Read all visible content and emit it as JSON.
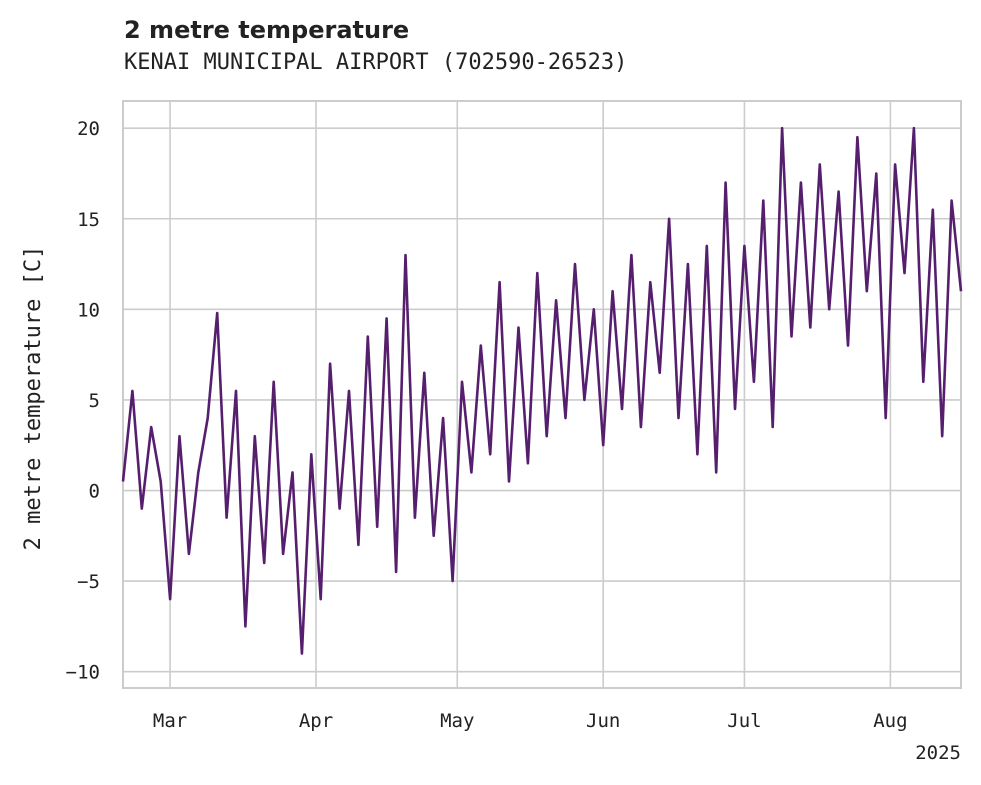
{
  "chart_data": {
    "type": "line",
    "title": "2 metre temperature",
    "subtitle": "KENAI MUNICIPAL AIRPORT (702590-26523)",
    "ylabel": "2 metre temperature [C]",
    "xlabel": "",
    "x_range": [
      "2025-02-19",
      "2025-08-16"
    ],
    "ylim": [
      -10.9,
      21.5
    ],
    "x_ticks": [
      {
        "date": "2025-03-01",
        "label": "Mar"
      },
      {
        "date": "2025-04-01",
        "label": "Apr"
      },
      {
        "date": "2025-05-01",
        "label": "May"
      },
      {
        "date": "2025-06-01",
        "label": "Jun"
      },
      {
        "date": "2025-07-01",
        "label": "Jul"
      },
      {
        "date": "2025-08-01",
        "label": "Aug"
      }
    ],
    "x_secondary_label": "2025",
    "y_ticks": [
      -10,
      -5,
      0,
      5,
      10,
      15,
      20
    ],
    "grid": true,
    "line_color": "#561f6e",
    "series": [
      {
        "x": [
          "2025-02-19",
          "2025-02-21",
          "2025-02-23",
          "2025-02-25",
          "2025-02-27",
          "2025-03-01",
          "2025-03-03",
          "2025-03-05",
          "2025-03-07",
          "2025-03-09",
          "2025-03-11",
          "2025-03-13",
          "2025-03-15",
          "2025-03-17",
          "2025-03-19",
          "2025-03-21",
          "2025-03-23",
          "2025-03-25",
          "2025-03-27",
          "2025-03-29",
          "2025-03-31",
          "2025-04-02",
          "2025-04-04",
          "2025-04-06",
          "2025-04-08",
          "2025-04-10",
          "2025-04-12",
          "2025-04-14",
          "2025-04-16",
          "2025-04-18",
          "2025-04-20",
          "2025-04-22",
          "2025-04-24",
          "2025-04-26",
          "2025-04-28",
          "2025-04-30",
          "2025-05-02",
          "2025-05-04",
          "2025-05-06",
          "2025-05-08",
          "2025-05-10",
          "2025-05-12",
          "2025-05-14",
          "2025-05-16",
          "2025-05-18",
          "2025-05-20",
          "2025-05-22",
          "2025-05-24",
          "2025-05-26",
          "2025-05-28",
          "2025-05-30",
          "2025-06-01",
          "2025-06-03",
          "2025-06-05",
          "2025-06-07",
          "2025-06-09",
          "2025-06-11",
          "2025-06-13",
          "2025-06-15",
          "2025-06-17",
          "2025-06-19",
          "2025-06-21",
          "2025-06-23",
          "2025-06-25",
          "2025-06-27",
          "2025-06-29",
          "2025-07-01",
          "2025-07-03",
          "2025-07-05",
          "2025-07-07",
          "2025-07-09",
          "2025-07-11",
          "2025-07-13",
          "2025-07-15",
          "2025-07-17",
          "2025-07-19",
          "2025-07-21",
          "2025-07-23",
          "2025-07-25",
          "2025-07-27",
          "2025-07-29",
          "2025-07-31",
          "2025-08-02",
          "2025-08-04",
          "2025-08-06",
          "2025-08-08",
          "2025-08-10",
          "2025-08-12",
          "2025-08-14",
          "2025-08-16"
        ],
        "y": [
          0.5,
          5.5,
          -1.0,
          3.5,
          0.5,
          -6.0,
          3.0,
          -3.5,
          1.0,
          4.0,
          9.8,
          -1.5,
          5.5,
          -7.5,
          3.0,
          -4.0,
          6.0,
          -3.5,
          1.0,
          -9.0,
          2.0,
          -6.0,
          7.0,
          -1.0,
          5.5,
          -3.0,
          8.5,
          -2.0,
          9.5,
          -4.5,
          13.0,
          -1.5,
          6.5,
          -2.5,
          4.0,
          -5.0,
          6.0,
          1.0,
          8.0,
          2.0,
          11.5,
          0.5,
          9.0,
          1.5,
          12.0,
          3.0,
          10.5,
          4.0,
          12.5,
          5.0,
          10.0,
          2.5,
          11.0,
          4.5,
          13.0,
          3.5,
          11.5,
          6.5,
          15.0,
          4.0,
          12.5,
          2.0,
          13.5,
          1.0,
          17.0,
          4.5,
          13.5,
          6.0,
          16.0,
          3.5,
          20.0,
          8.5,
          17.0,
          9.0,
          18.0,
          10.0,
          16.5,
          8.0,
          19.5,
          11.0,
          17.5,
          4.0,
          18.0,
          12.0,
          20.0,
          6.0,
          15.5,
          3.0,
          16.0,
          11.0
        ]
      }
    ]
  }
}
